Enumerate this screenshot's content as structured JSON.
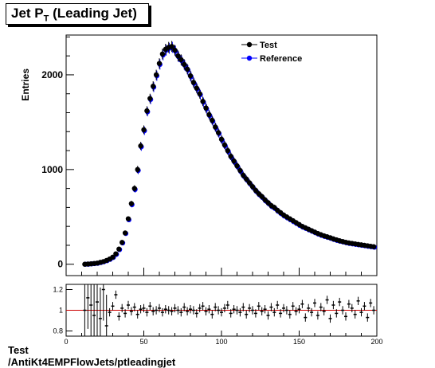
{
  "title": {
    "main": "Jet P",
    "sub": "T",
    "rest": " (Leading Jet)"
  },
  "footer": {
    "line1": "Test",
    "line2": "/AntiKt4EMPFlowJets/ptleadingjet"
  },
  "colors": {
    "test": "#000000",
    "reference": "#0000ff",
    "ratio_line": "#cc0000"
  },
  "chart_data": [
    {
      "type": "scatter",
      "ylabel": "Entries",
      "xlim": [
        0,
        200
      ],
      "ylim": [
        -120,
        2420
      ],
      "x_ticks": [
        0,
        50,
        100,
        150,
        200
      ],
      "y_ticks": [
        0,
        1000,
        2000
      ],
      "legend": {
        "position": "top-right",
        "entries": [
          "Test",
          "Reference"
        ]
      },
      "x": [
        12,
        14,
        16,
        18,
        20,
        22,
        24,
        26,
        28,
        30,
        32,
        34,
        36,
        38,
        40,
        42,
        44,
        46,
        48,
        50,
        52,
        54,
        56,
        58,
        60,
        62,
        64,
        66,
        68,
        70,
        72,
        74,
        76,
        78,
        80,
        82,
        84,
        86,
        88,
        90,
        92,
        94,
        96,
        98,
        100,
        102,
        104,
        106,
        108,
        110,
        112,
        114,
        116,
        118,
        120,
        122,
        124,
        126,
        128,
        130,
        132,
        134,
        136,
        138,
        140,
        142,
        144,
        146,
        148,
        150,
        152,
        154,
        156,
        158,
        160,
        162,
        164,
        166,
        168,
        170,
        172,
        174,
        176,
        178,
        180,
        182,
        184,
        186,
        188,
        190,
        192,
        194,
        196,
        198
      ],
      "series": [
        {
          "name": "Test",
          "values": [
            0,
            2,
            5,
            8,
            12,
            20,
            28,
            40,
            55,
            75,
            110,
            160,
            230,
            330,
            480,
            640,
            800,
            1000,
            1250,
            1420,
            1620,
            1750,
            1880,
            2000,
            2120,
            2220,
            2270,
            2290,
            2300,
            2260,
            2200,
            2160,
            2110,
            2060,
            1990,
            1920,
            1860,
            1800,
            1720,
            1650,
            1580,
            1520,
            1450,
            1390,
            1320,
            1260,
            1200,
            1140,
            1090,
            1040,
            990,
            940,
            900,
            860,
            820,
            780,
            745,
            715,
            680,
            650,
            620,
            600,
            570,
            545,
            520,
            500,
            480,
            460,
            440,
            420,
            400,
            385,
            370,
            355,
            340,
            325,
            312,
            300,
            290,
            280,
            268,
            258,
            248,
            240,
            232,
            225,
            220,
            215,
            210,
            205,
            200,
            195,
            190,
            185
          ]
        },
        {
          "name": "Reference",
          "values": [
            0,
            1,
            4,
            7,
            10,
            18,
            27,
            38,
            52,
            72,
            105,
            155,
            225,
            325,
            470,
            630,
            790,
            990,
            1240,
            1410,
            1610,
            1740,
            1870,
            1990,
            2110,
            2210,
            2260,
            2280,
            2290,
            2250,
            2190,
            2150,
            2100,
            2050,
            1980,
            1910,
            1850,
            1790,
            1710,
            1640,
            1570,
            1510,
            1440,
            1380,
            1310,
            1250,
            1190,
            1130,
            1080,
            1030,
            980,
            930,
            890,
            850,
            810,
            770,
            735,
            705,
            670,
            640,
            610,
            590,
            560,
            535,
            510,
            490,
            470,
            450,
            430,
            410,
            392,
            378,
            363,
            348,
            333,
            318,
            305,
            294,
            284,
            274,
            262,
            252,
            243,
            235,
            227,
            220,
            215,
            210,
            205,
            200,
            195,
            190,
            185,
            180
          ]
        }
      ]
    },
    {
      "type": "scatter",
      "xlim": [
        0,
        200
      ],
      "ylim": [
        0.75,
        1.25
      ],
      "x_ticks": [
        0,
        50,
        100,
        150,
        200
      ],
      "y_ticks": [
        0.8,
        1,
        1.2
      ],
      "reference_line": 1,
      "x": [
        12,
        14,
        16,
        18,
        20,
        22,
        24,
        26,
        28,
        30,
        32,
        34,
        36,
        38,
        40,
        42,
        44,
        46,
        48,
        50,
        52,
        54,
        56,
        58,
        60,
        62,
        64,
        66,
        68,
        70,
        72,
        74,
        76,
        78,
        80,
        82,
        84,
        86,
        88,
        90,
        92,
        94,
        96,
        98,
        100,
        102,
        104,
        106,
        108,
        110,
        112,
        114,
        116,
        118,
        120,
        122,
        124,
        126,
        128,
        130,
        132,
        134,
        136,
        138,
        140,
        142,
        144,
        146,
        148,
        150,
        152,
        154,
        156,
        158,
        160,
        162,
        164,
        166,
        168,
        170,
        172,
        174,
        176,
        178,
        180,
        182,
        184,
        186,
        188,
        190,
        192,
        194,
        196,
        198
      ],
      "values": [
        1.0,
        1.12,
        1.05,
        0.95,
        1.08,
        0.92,
        1.2,
        0.85,
        0.98,
        1.04,
        1.15,
        0.94,
        1.02,
        0.97,
        1.05,
        0.99,
        1.03,
        0.96,
        1.01,
        1.02,
        0.98,
        1.04,
        0.99,
        1.0,
        1.02,
        0.98,
        1.01,
        1.0,
        0.99,
        1.02,
        1.0,
        0.98,
        1.03,
        0.99,
        1.01,
        1.0,
        0.97,
        1.02,
        1.04,
        0.99,
        1.01,
        0.96,
        1.03,
        1.0,
        0.98,
        1.02,
        1.05,
        0.97,
        1.01,
        1.0,
        0.98,
        1.03,
        0.96,
        1.02,
        1.0,
        0.97,
        1.04,
        0.99,
        1.01,
        0.95,
        1.03,
        0.98,
        1.05,
        0.97,
        1.02,
        1.0,
        0.96,
        1.04,
        0.99,
        1.01,
        1.06,
        0.93,
        1.02,
        0.98,
        1.07,
        0.95,
        1.03,
        0.99,
        1.1,
        0.92,
        1.05,
        0.97,
        1.08,
        1.0,
        0.94,
        1.06,
        1.02,
        0.96,
        1.09,
        0.98,
        1.04,
        0.93,
        1.07,
        1.0
      ]
    }
  ]
}
